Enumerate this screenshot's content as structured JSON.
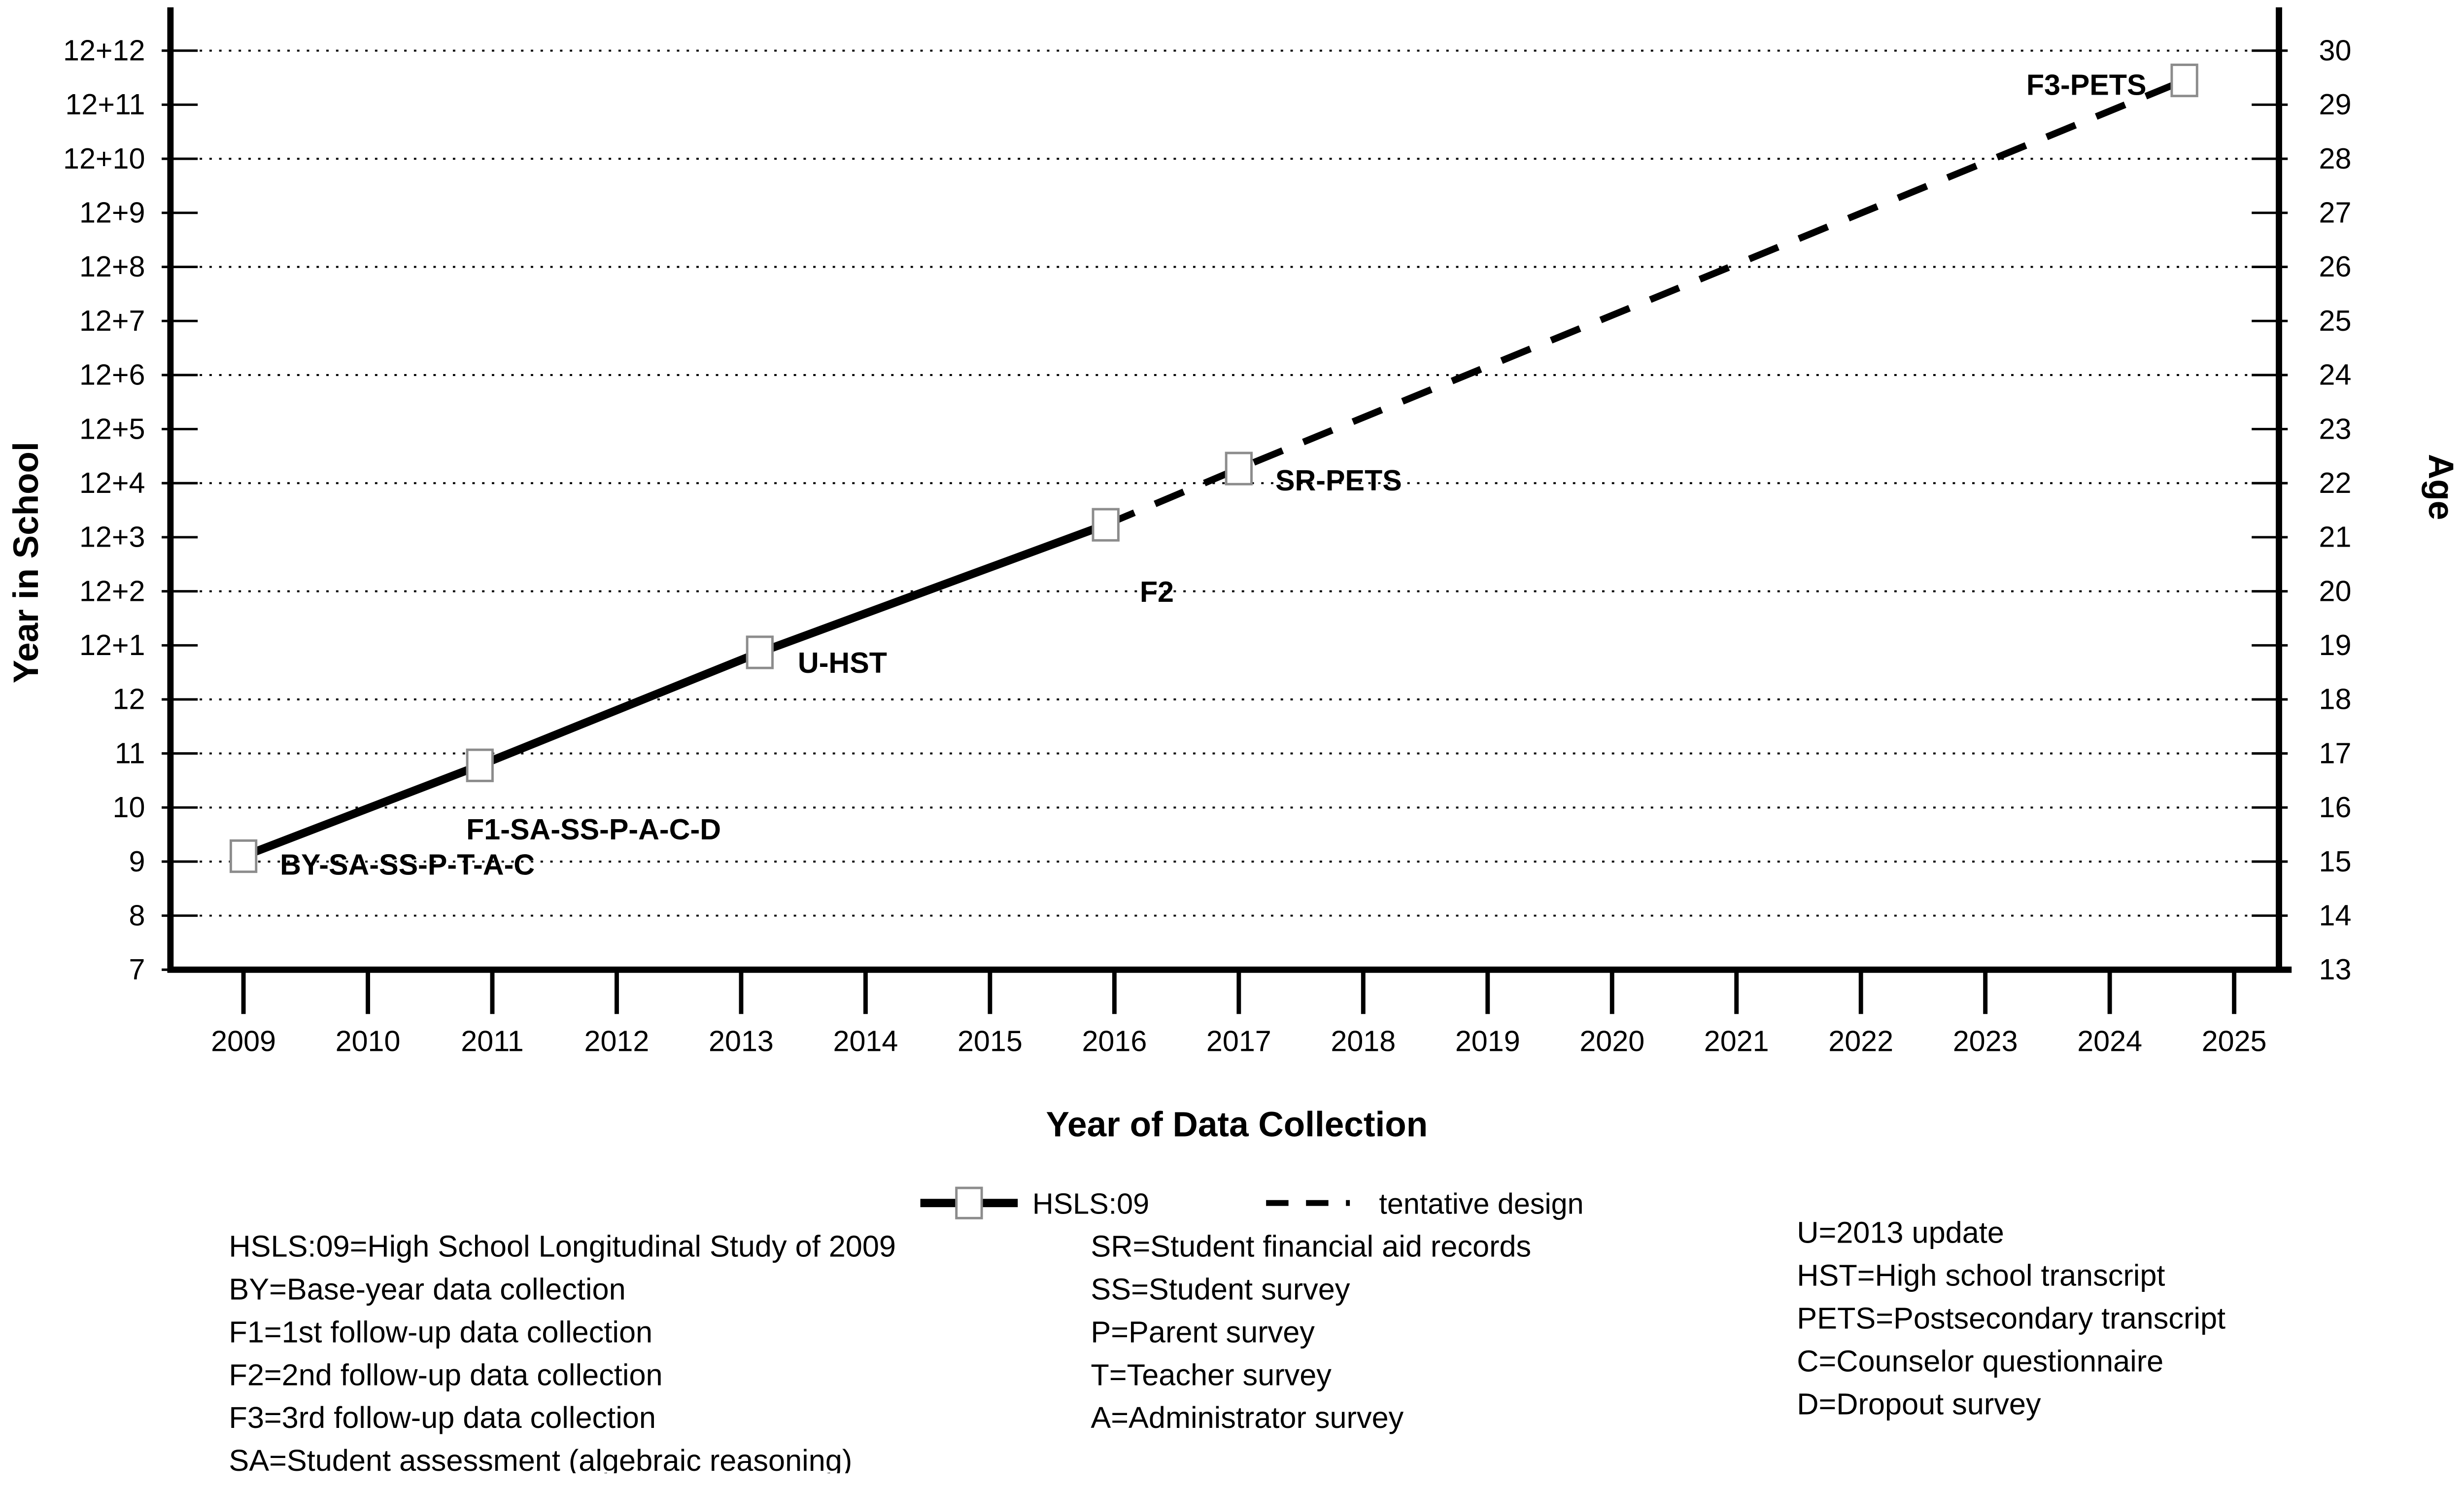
{
  "figure": {
    "x_title": "Year of Data Collection",
    "y_left_title": "Year in School",
    "y_right_title": "Age"
  },
  "legend": {
    "items": [
      {
        "label": "HSLS:09",
        "style": "solid-line-square-marker"
      },
      {
        "label": "tentative design",
        "style": "dashed-line"
      }
    ]
  },
  "key": {
    "col1": [
      "HSLS:09=High School Longitudinal Study of 2009",
      "BY=Base-year data collection",
      "F1=1st follow-up data collection",
      "F2=2nd follow-up data collection",
      "F3=3rd follow-up data collection",
      "SA=Student assessment (algebraic reasoning)"
    ],
    "col2": [
      "SR=Student financial aid records",
      "SS=Student survey",
      "P=Parent survey",
      "T=Teacher survey",
      "A=Administrator survey"
    ],
    "col3": [
      "U=2013 update",
      "HST=High school transcript",
      "PETS=Postsecondary transcript",
      "C=Counselor questionnaire",
      "D=Dropout survey"
    ]
  },
  "colors": {
    "line": "#000000",
    "marker_fill": "#ffffff",
    "marker_stroke": "#8c8c8c",
    "text": "#000000",
    "background": "#ffffff"
  },
  "chart_data": {
    "type": "line",
    "title": "",
    "xlabel": "Year of Data Collection",
    "ylabel_left": "Year in School",
    "ylabel_right": "Age",
    "x_ticks": [
      2009,
      2010,
      2011,
      2012,
      2013,
      2014,
      2015,
      2016,
      2017,
      2018,
      2019,
      2020,
      2021,
      2022,
      2023,
      2024,
      2025
    ],
    "xlim": [
      2008.4,
      2025.95
    ],
    "ylim_school_units": [
      7,
      24.8
    ],
    "grid": "dotted-horizontal",
    "legend_position": "below-x-axis-title",
    "y_ticks": [
      {
        "value": 7,
        "left": "7",
        "right": "13"
      },
      {
        "value": 8,
        "left": "8",
        "right": "14"
      },
      {
        "value": 9,
        "left": "9",
        "right": "15"
      },
      {
        "value": 10,
        "left": "10",
        "right": "16"
      },
      {
        "value": 11,
        "left": "11",
        "right": "17"
      },
      {
        "value": 12,
        "left": "12",
        "right": "18"
      },
      {
        "value": 13,
        "left": "12+1",
        "right": "19"
      },
      {
        "value": 14,
        "left": "12+2",
        "right": "20"
      },
      {
        "value": 15,
        "left": "12+3",
        "right": "21"
      },
      {
        "value": 16,
        "left": "12+4",
        "right": "22"
      },
      {
        "value": 17,
        "left": "12+5",
        "right": "23"
      },
      {
        "value": 18,
        "left": "12+6",
        "right": "24"
      },
      {
        "value": 19,
        "left": "12+7",
        "right": "25"
      },
      {
        "value": 20,
        "left": "12+8",
        "right": "26"
      },
      {
        "value": 21,
        "left": "12+9",
        "right": "27"
      },
      {
        "value": 22,
        "left": "12+10",
        "right": "28"
      },
      {
        "value": 23,
        "left": "12+11",
        "right": "29"
      },
      {
        "value": 24,
        "left": "12+12",
        "right": "30"
      }
    ],
    "gridline_values": [
      8,
      9,
      10,
      11,
      12,
      14,
      16,
      18,
      20,
      22,
      24
    ],
    "series": [
      {
        "name": "HSLS:09",
        "style": "solid",
        "points": [
          {
            "year": 2009.0,
            "year_in_school": 9.1,
            "age": 15.1,
            "label": "BY-SA-SS-P-T-A-C",
            "marker": true,
            "label_anchor": "start",
            "label_dx": 75,
            "label_dy": 38
          },
          {
            "year": 2010.9,
            "year_in_school": 10.78,
            "age": 16.8,
            "label": "F1-SA-SS-P-A-C-D",
            "marker": true,
            "label_anchor": "start",
            "label_dx": -28,
            "label_dy": 152
          },
          {
            "year": 2013.15,
            "year_in_school": 12.87,
            "age": 18.9,
            "label": "U-HST",
            "marker": true,
            "label_anchor": "start",
            "label_dx": 78,
            "label_dy": 42
          },
          {
            "year": 2015.93,
            "year_in_school": 15.23,
            "age": 21.2,
            "label": "F2",
            "marker": true,
            "label_anchor": "start",
            "label_dx": 70,
            "label_dy": 158
          }
        ]
      },
      {
        "name": "tentative design",
        "style": "dashed",
        "points": [
          {
            "year": 2015.93,
            "year_in_school": 15.23,
            "age": 21.2,
            "label": null,
            "marker": false
          },
          {
            "year": 2017.0,
            "year_in_school": 16.27,
            "age": 22.3,
            "label": "SR-PETS",
            "marker": true,
            "label_anchor": "start",
            "label_dx": 75,
            "label_dy": 45
          },
          {
            "year": 2024.6,
            "year_in_school": 23.45,
            "age": 29.4,
            "label": "F3-PETS",
            "marker": true,
            "label_anchor": "end",
            "label_dx": -78,
            "label_dy": 30
          }
        ]
      }
    ]
  }
}
